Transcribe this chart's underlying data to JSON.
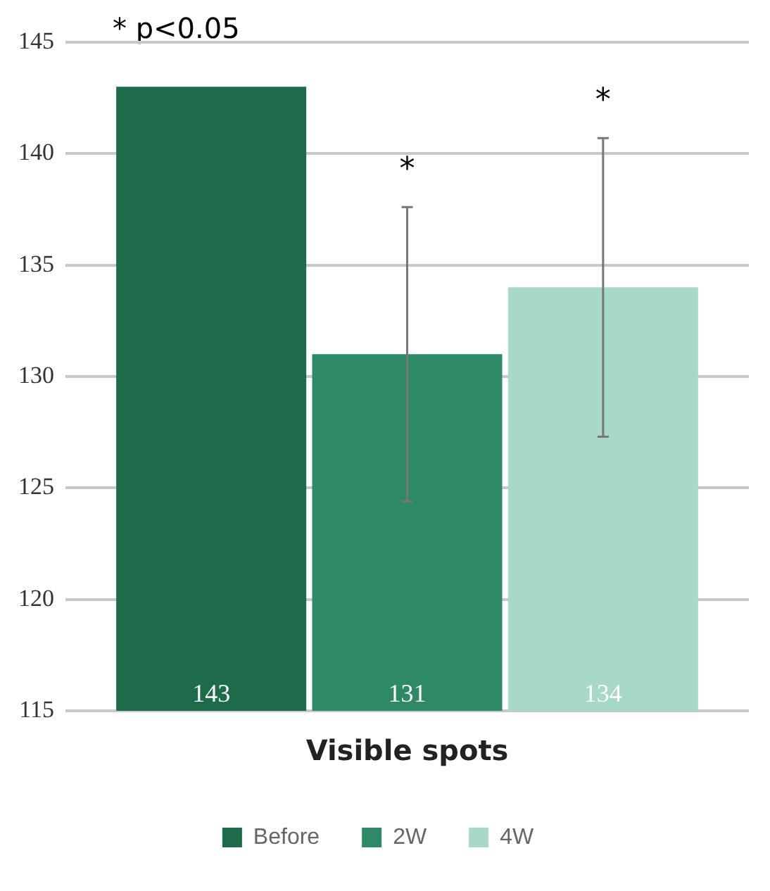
{
  "chart_data": {
    "type": "bar",
    "categories": [
      "Visible spots"
    ],
    "series": [
      {
        "name": "Before",
        "color": "#1e6b4c",
        "values": [
          143
        ],
        "errors": [
          null
        ],
        "value_labels": [
          "143"
        ]
      },
      {
        "name": "2W",
        "color": "#2e8a66",
        "values": [
          131
        ],
        "errors": [
          6.6
        ],
        "value_labels": [
          "131"
        ]
      },
      {
        "name": "4W",
        "color": "#a8d8c8",
        "values": [
          134
        ],
        "errors": [
          6.7
        ],
        "value_labels": [
          "134"
        ]
      }
    ],
    "ylim": [
      115,
      145
    ],
    "yticks": [
      115,
      120,
      125,
      130,
      135,
      140,
      145
    ],
    "grid": "y",
    "legend": "bottom",
    "annotations": [
      "* p<0.05",
      "*",
      "*"
    ]
  }
}
